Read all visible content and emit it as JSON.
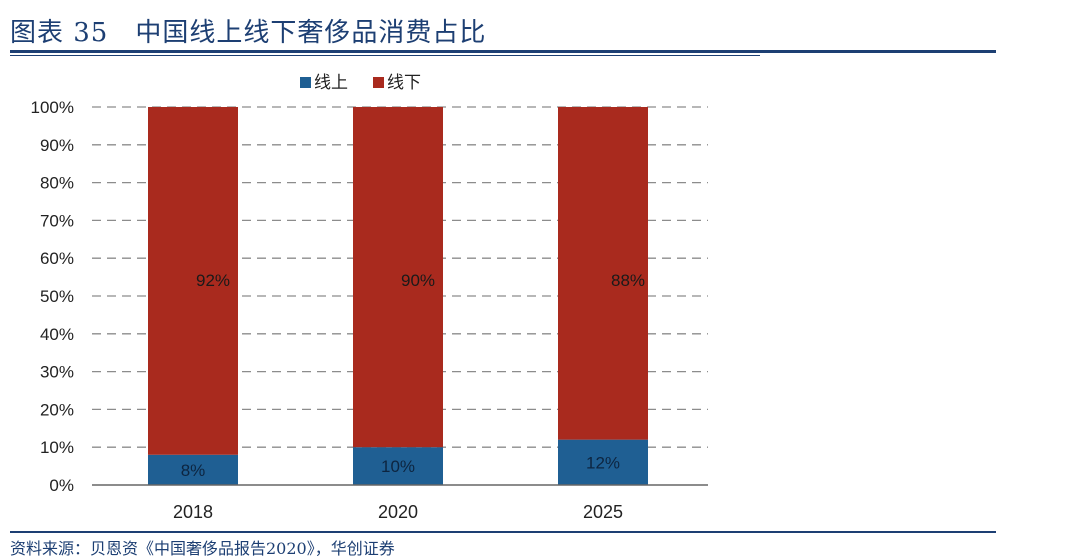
{
  "header": {
    "title": "图表 35　中国线上线下奢侈品消费占比"
  },
  "footer": {
    "source": "资料来源：贝恩资《中国奢侈品报告2020》，华创证券"
  },
  "colors": {
    "online": "#1f5f93",
    "offline": "#a92a1e",
    "grid": "#8c8c8c",
    "brand": "#1d3f73"
  },
  "chart_data": {
    "type": "bar",
    "stacked": true,
    "percent": true,
    "categories": [
      "2018",
      "2020",
      "2025"
    ],
    "series": [
      {
        "name": "线上",
        "values": [
          8,
          10,
          12
        ],
        "labels": [
          "8%",
          "10%",
          "12%"
        ],
        "color": "#1f5f93"
      },
      {
        "name": "线下",
        "values": [
          92,
          90,
          88
        ],
        "labels": [
          "92%",
          "90%",
          "88%"
        ],
        "color": "#a92a1e"
      }
    ],
    "ylim": [
      0,
      100
    ],
    "yticks": [
      "0%",
      "10%",
      "20%",
      "30%",
      "40%",
      "50%",
      "60%",
      "70%",
      "80%",
      "90%",
      "100%"
    ],
    "grid": true,
    "legend": "top-center",
    "title": "",
    "xlabel": "",
    "ylabel": ""
  }
}
